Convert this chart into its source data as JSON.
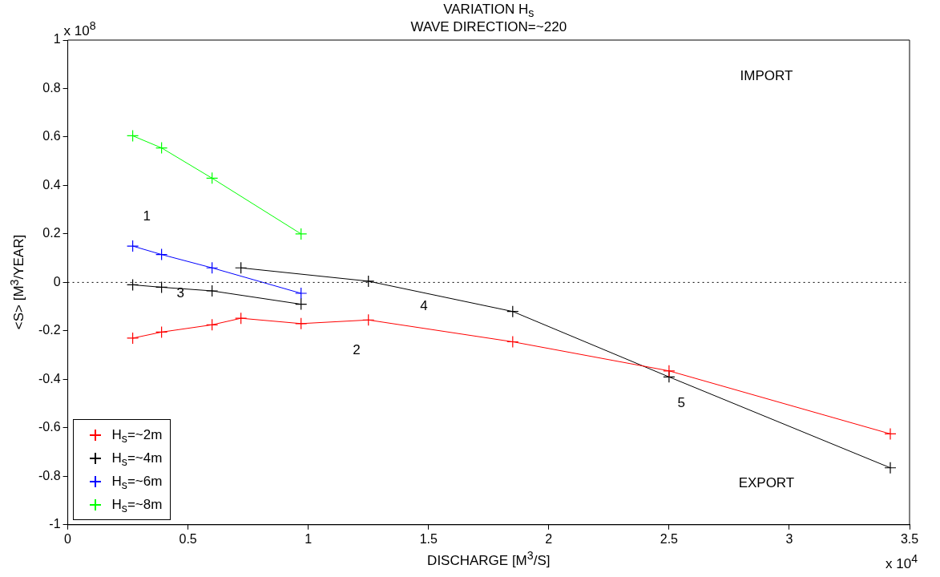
{
  "chart_data": {
    "type": "line",
    "title": "VARIATION H$_{s}$",
    "subtitle": "WAVE DIRECTION=~220",
    "xlabel": "DISCHARGE [M$^{3}$/S]",
    "ylabel": "<S> [M$^{3}$/YEAR]",
    "xlim": [
      0,
      3.5
    ],
    "xticks": [
      0,
      0.5,
      1,
      1.5,
      2,
      2.5,
      3,
      3.5
    ],
    "ylim": [
      -1,
      1
    ],
    "yticks": [
      -1,
      -0.8,
      -0.6,
      -0.4,
      -0.2,
      0,
      0.2,
      0.4,
      0.6,
      0.8,
      1
    ],
    "grid": false,
    "legend": "bottom left",
    "marker": "cross",
    "line_style": "solid",
    "series": [
      {
        "name": "H$_{s}$=~2m",
        "color": "#ff0000",
        "x": [
          0.27,
          0.39,
          0.6,
          0.72,
          0.97,
          1.25,
          1.85,
          2.5,
          3.42
        ],
        "values": [
          -0.23,
          -0.205,
          -0.175,
          -0.148,
          -0.17,
          -0.155,
          -0.245,
          -0.365,
          -0.625
        ]
      },
      {
        "name": "H$_{s}$=~4m",
        "color": "#000000",
        "x": [
          0.27,
          0.39,
          0.6,
          0.97,
          0.85,
          0.72,
          1.25,
          1.85,
          2.5,
          3.42
        ],
        "values": [
          -0.01,
          -0.02,
          -0.035,
          -0.09,
          null,
          0.06,
          0.005,
          -0.12,
          -0.39,
          -0.765
        ]
      },
      {
        "name": "H$_{s}$=~6m",
        "color": "#0000ff",
        "x": [
          0.27,
          0.39,
          0.6,
          0.97
        ],
        "values": [
          0.15,
          0.115,
          0.06,
          -0.045
        ]
      },
      {
        "name": "H$_{s}$=~8m",
        "color": "#00ff00",
        "x": [
          0.27,
          0.39,
          0.6,
          0.97
        ],
        "values": [
          0.605,
          0.555,
          0.43,
          0.2
        ]
      }
    ],
    "ref_lines": [
      {
        "axis": "y",
        "value": 0,
        "color": "#000000",
        "line_style": "dotted"
      }
    ],
    "annotations": [
      "x 10$^{8}$",
      "x 10$^{4}$",
      "IMPORT",
      "EXPORT",
      "1",
      "2",
      "3",
      "4",
      "5"
    ]
  }
}
